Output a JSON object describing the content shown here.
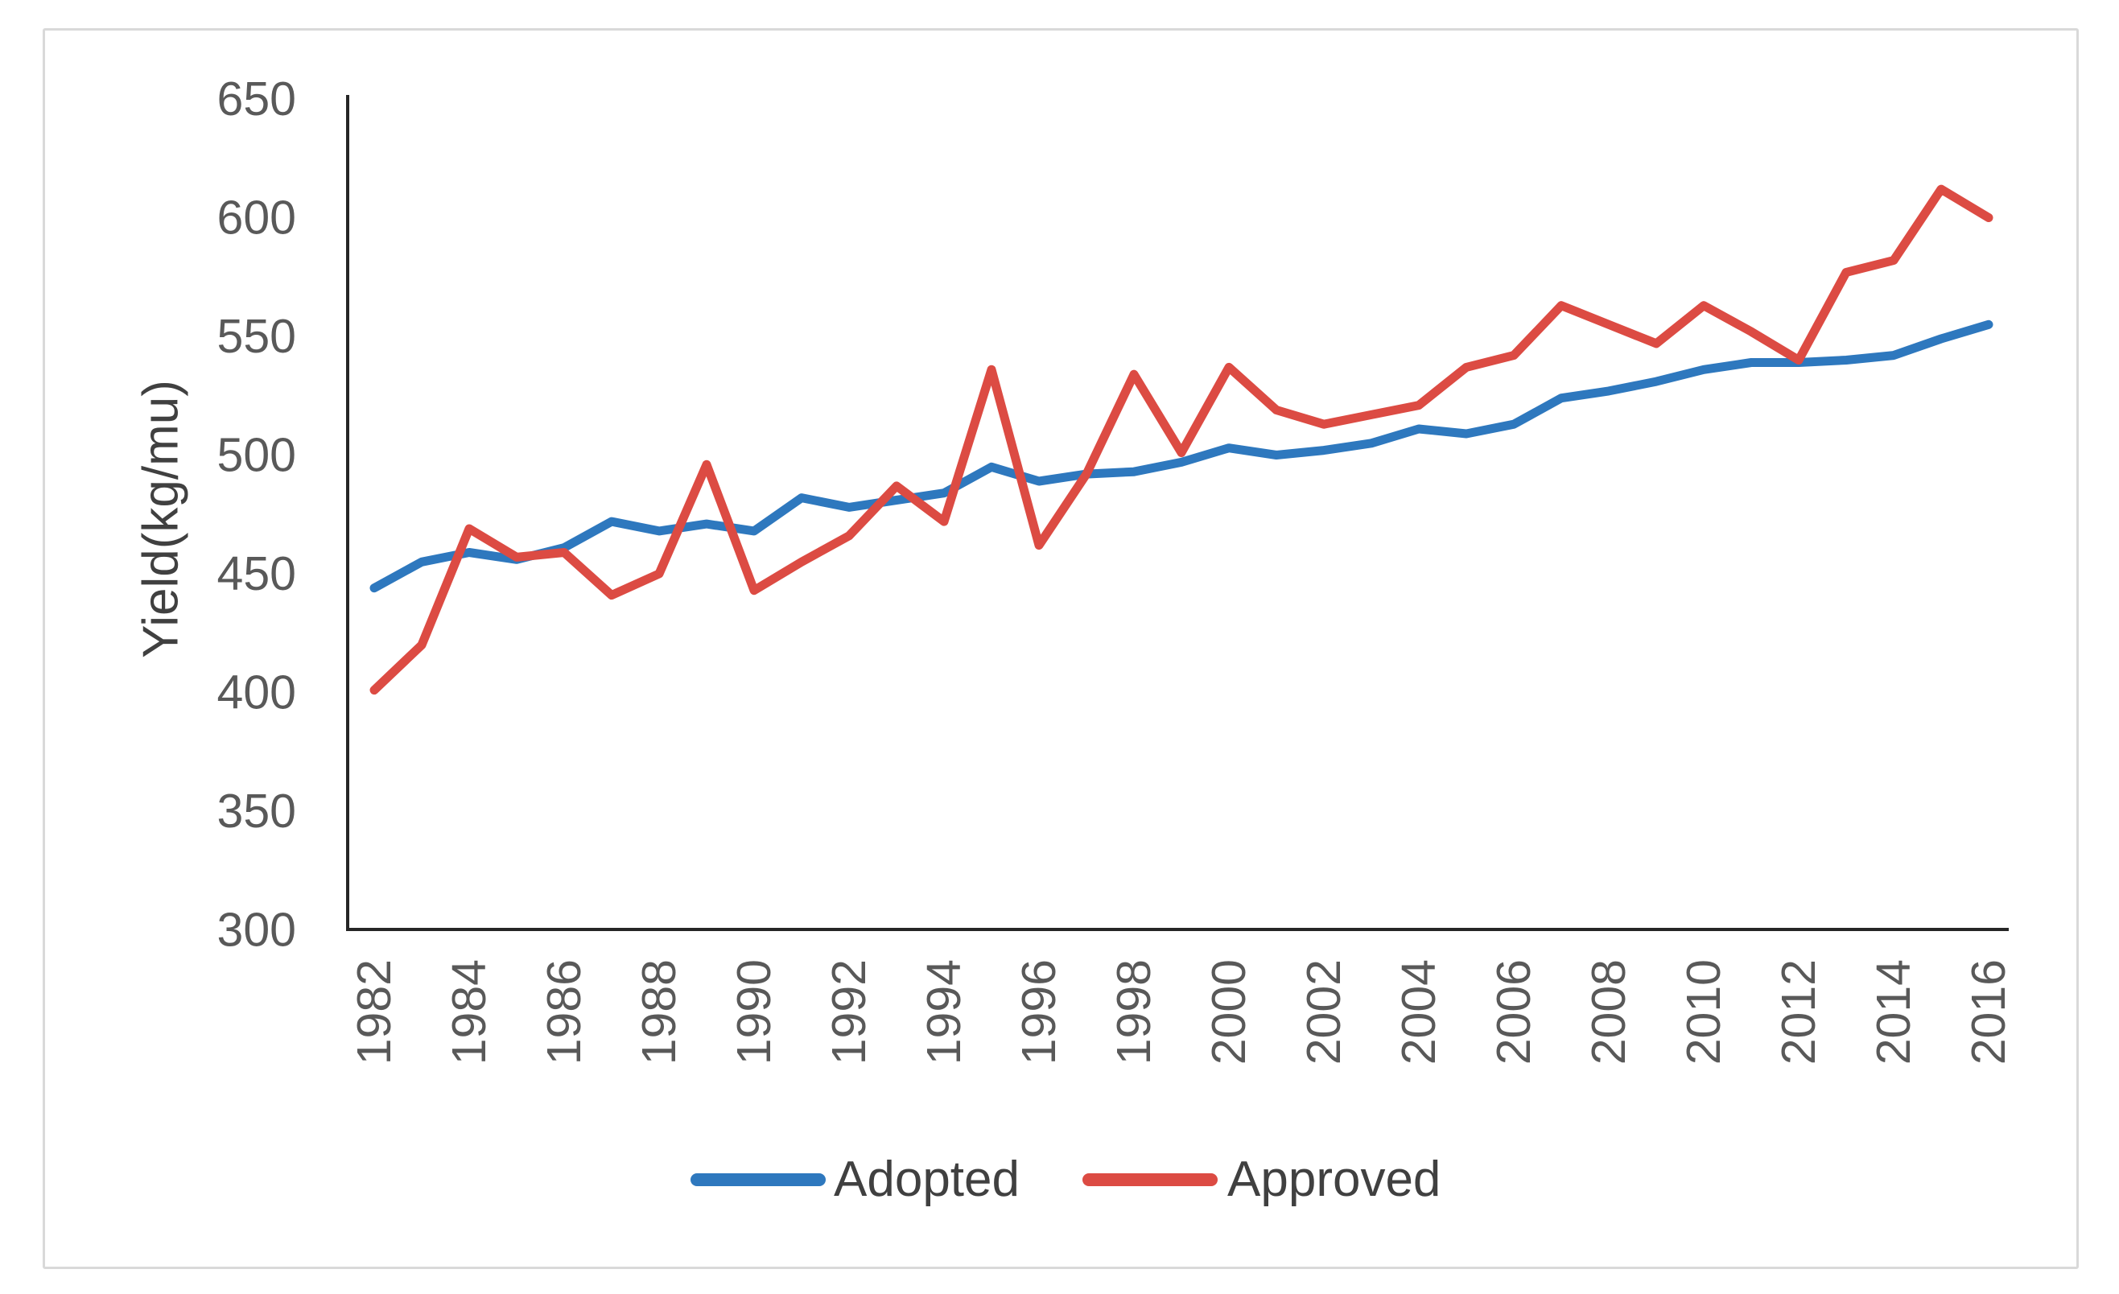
{
  "chart_data": {
    "type": "line",
    "title": "",
    "xlabel": "",
    "ylabel": "Yield(kg/mu)",
    "ylim": [
      300,
      650
    ],
    "ytick_interval": 50,
    "yticks": [
      650,
      600,
      550,
      500,
      450,
      400,
      350,
      300
    ],
    "xticks_shown": [
      1982,
      1984,
      1986,
      1988,
      1990,
      1992,
      1994,
      1996,
      1998,
      2000,
      2002,
      2004,
      2006,
      2008,
      2010,
      2012,
      2014,
      2016
    ],
    "grid": false,
    "legend_position": "bottom-center",
    "x": [
      1982,
      1983,
      1984,
      1985,
      1986,
      1987,
      1988,
      1989,
      1990,
      1991,
      1992,
      1993,
      1994,
      1995,
      1996,
      1997,
      1998,
      1999,
      2000,
      2001,
      2002,
      2003,
      2004,
      2005,
      2006,
      2007,
      2008,
      2009,
      2010,
      2011,
      2012,
      2013,
      2014,
      2015,
      2016
    ],
    "series": [
      {
        "name": "Adopted",
        "color": "#2E78BE",
        "values": [
          444,
          455,
          459,
          456,
          461,
          472,
          468,
          471,
          468,
          482,
          478,
          481,
          484,
          495,
          489,
          492,
          493,
          497,
          503,
          500,
          502,
          505,
          511,
          509,
          513,
          524,
          527,
          531,
          536,
          539,
          539,
          540,
          542,
          549,
          555
        ]
      },
      {
        "name": "Approved",
        "color": "#DC4B43",
        "values": [
          401,
          420,
          469,
          457,
          459,
          441,
          450,
          496,
          443,
          455,
          466,
          487,
          472,
          536,
          462,
          492,
          534,
          501,
          537,
          519,
          513,
          517,
          521,
          537,
          542,
          563,
          555,
          547,
          563,
          552,
          540,
          577,
          582,
          612,
          600
        ]
      }
    ]
  },
  "axis_style": {
    "axis_color": "#262626",
    "tick_label_color": "#595959",
    "title_color": "#404040"
  }
}
